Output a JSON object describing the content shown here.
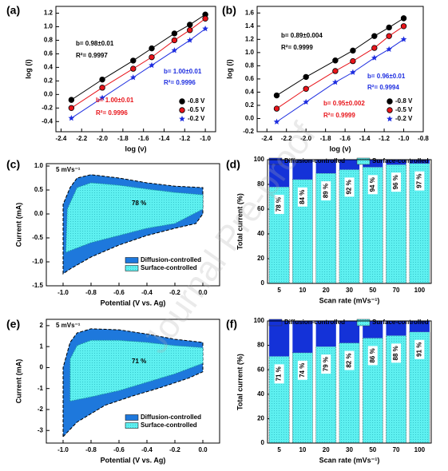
{
  "watermark": "Journal Pre-proof",
  "chart_data": [
    {
      "panel_label": "(a)",
      "type": "line",
      "xlabel": "log (ν)",
      "ylabel": "log (i)",
      "x": [
        -2.3,
        -2.0,
        -1.7,
        -1.52,
        -1.3,
        -1.15,
        -1.0
      ],
      "series": [
        {
          "name": "-0.8 V",
          "color": "#000000",
          "marker": "circle",
          "values": [
            -0.08,
            0.22,
            0.5,
            0.68,
            0.9,
            1.03,
            1.18
          ]
        },
        {
          "name": "-0.5 V",
          "color": "#e8141a",
          "marker": "circle",
          "values": [
            -0.2,
            0.1,
            0.38,
            0.55,
            0.8,
            0.95,
            1.12
          ]
        },
        {
          "name": "-0.2 V",
          "color": "#1d2de0",
          "marker": "star",
          "values": [
            -0.35,
            -0.05,
            0.25,
            0.43,
            0.65,
            0.8,
            0.97
          ]
        }
      ],
      "xlim": [
        -2.45,
        -0.9
      ],
      "xticks": [
        -2.4,
        -2.2,
        {
          "value": -2,
          "label": "-2.0"
        },
        -1.8,
        -1.6,
        -1.4,
        -1.2,
        {
          "value": -1,
          "label": "-1.0"
        }
      ],
      "ylim": [
        -0.55,
        1.3
      ],
      "yticks": [
        -0.4,
        -0.2,
        {
          "value": 0,
          "label": "0.0"
        },
        0.2,
        0.4,
        0.6,
        0.8,
        {
          "value": 1,
          "label": "1.0"
        },
        1.2
      ],
      "annotations": [
        {
          "text": "b= 0.98±0.01",
          "color": "#000000"
        },
        {
          "text": "R²= 0.9997",
          "color": "#000000"
        },
        {
          "text": "b= 1.00±0.01",
          "color": "#1d2de0"
        },
        {
          "text": "R²= 0.9996",
          "color": "#1d2de0"
        },
        {
          "text": "b= 1.00±0.01",
          "color": "#e8141a"
        },
        {
          "text": "R²= 0.9996",
          "color": "#e8141a"
        }
      ]
    },
    {
      "panel_label": "(b)",
      "type": "line",
      "xlabel": "log (ν)",
      "ylabel": "log (i)",
      "x": [
        -2.3,
        -2.0,
        -1.7,
        -1.52,
        -1.3,
        -1.15,
        -1.0
      ],
      "series": [
        {
          "name": "-0.8 V",
          "color": "#000000",
          "marker": "circle",
          "values": [
            0.35,
            0.63,
            0.88,
            1.03,
            1.25,
            1.38,
            1.52
          ]
        },
        {
          "name": "-0.5 V",
          "color": "#e8141a",
          "marker": "circle",
          "values": [
            0.15,
            0.45,
            0.72,
            0.87,
            1.07,
            1.25,
            1.4
          ]
        },
        {
          "name": "-0.2 V",
          "color": "#1d2de0",
          "marker": "star",
          "values": [
            -0.05,
            0.25,
            0.55,
            0.7,
            0.92,
            1.05,
            1.2
          ]
        }
      ],
      "xlim": [
        -2.5,
        -0.8
      ],
      "xticks": [
        -2.4,
        -2.2,
        {
          "value": -2,
          "label": "-2.0"
        },
        -1.8,
        -1.6,
        -1.4,
        -1.2,
        {
          "value": -1,
          "label": "-1.0"
        },
        -0.8
      ],
      "ylim": [
        -0.2,
        1.7
      ],
      "yticks": [
        -0.2,
        {
          "value": 0,
          "label": "0.0"
        },
        0.2,
        0.4,
        0.6,
        0.8,
        {
          "value": 1,
          "label": "1.0"
        },
        1.2,
        1.4,
        1.6
      ],
      "annotations": [
        {
          "text": "b= 0.89±0.004",
          "color": "#000000"
        },
        {
          "text": "R²= 0.9999",
          "color": "#000000"
        },
        {
          "text": "b= 0.96±0.01",
          "color": "#1d2de0"
        },
        {
          "text": "R²= 0.9994",
          "color": "#1d2de0"
        },
        {
          "text": "b= 0.95±0.002",
          "color": "#e8141a"
        },
        {
          "text": "R²= 0.9999",
          "color": "#e8141a"
        }
      ]
    },
    {
      "panel_label": "(c)",
      "type": "area",
      "xlabel": "Potential (V vs. Ag)",
      "ylabel": "Current (mA)",
      "series": [
        {
          "name": "Diffusion-controlled",
          "color": "#1e78dc",
          "x": [
            -1.0,
            -1.0,
            -0.95,
            -0.9,
            -0.8,
            -0.6,
            -0.4,
            -0.2,
            0,
            0,
            -0.05,
            -0.2,
            -0.4,
            -0.6,
            -0.8,
            -0.95,
            -1.0
          ],
          "values": [
            -1.25,
            0.2,
            0.55,
            0.75,
            0.82,
            0.75,
            0.65,
            0.58,
            0.55,
            0,
            -0.2,
            -0.3,
            -0.45,
            -0.65,
            -0.9,
            -1.15,
            -1.25
          ]
        },
        {
          "name": "Surface-controlled",
          "color": "#3fe6ee",
          "x": [
            -0.98,
            -0.97,
            -0.9,
            -0.8,
            -0.6,
            -0.4,
            -0.2,
            0,
            0,
            -0.2,
            -0.4,
            -0.6,
            -0.8,
            -0.98
          ],
          "values": [
            -0.8,
            0.1,
            0.55,
            0.65,
            0.6,
            0.52,
            0.45,
            0.4,
            0.1,
            -0.2,
            -0.3,
            -0.45,
            -0.6,
            -0.8
          ]
        }
      ],
      "xlim": [
        -1.12,
        0.12
      ],
      "xticks": [
        {
          "value": -1,
          "label": "-1.0"
        },
        -0.8,
        -0.6,
        -0.4,
        -0.2,
        {
          "value": 0,
          "label": "0.0"
        }
      ],
      "ylim": [
        -1.5,
        1.05
      ],
      "yticks": [
        -1.5,
        {
          "value": -1,
          "label": "-1.0"
        },
        -0.5,
        {
          "value": 0,
          "label": "0.0"
        },
        0.5,
        {
          "value": 1,
          "label": "1.0"
        }
      ],
      "annotations": [
        {
          "text": "5 mVs⁻¹",
          "color": "#000000"
        },
        {
          "text": "78 %",
          "color": "#000000"
        }
      ]
    },
    {
      "panel_label": "(d)",
      "type": "stacked-bar",
      "xlabel": "Scan rate (mVs⁻¹)",
      "ylabel": "Total current (%)",
      "categories": [
        "5",
        "10",
        "20",
        "30",
        "50",
        "70",
        "100"
      ],
      "series": [
        {
          "name": "Surface-controlled",
          "color": "#5ef0f0",
          "values": [
            78,
            84,
            89,
            92,
            94,
            96,
            97
          ],
          "value_labels": [
            "78 %",
            "84 %",
            "89 %",
            "92 %",
            "94 %",
            "96 %",
            "97 %"
          ]
        },
        {
          "name": "Diffusion-controlled",
          "color": "#1432d8",
          "values": [
            22,
            16,
            11,
            8,
            6,
            4,
            3
          ]
        }
      ],
      "ylim": [
        0,
        100
      ],
      "yticks": [
        0,
        20,
        40,
        60,
        80,
        100
      ]
    },
    {
      "panel_label": "(e)",
      "type": "area",
      "xlabel": "Potential (V vs. Ag)",
      "ylabel": "Current (mA)",
      "series": [
        {
          "name": "Diffusion-controlled",
          "color": "#1e78dc",
          "x": [
            -1.0,
            -1.0,
            -0.95,
            -0.9,
            -0.8,
            -0.6,
            -0.4,
            -0.2,
            0,
            0,
            -0.1,
            -0.3,
            -0.5,
            -0.7,
            -0.9,
            -1.0
          ],
          "values": [
            -3.3,
            0,
            1.2,
            1.65,
            1.85,
            1.8,
            1.6,
            1.35,
            1.2,
            -0.2,
            -0.5,
            -0.95,
            -1.35,
            -1.8,
            -2.6,
            -3.3
          ]
        },
        {
          "name": "Surface-controlled",
          "color": "#3fe6ee",
          "x": [
            -0.95,
            -0.95,
            -0.9,
            -0.8,
            -0.6,
            -0.4,
            -0.2,
            0,
            0,
            -0.2,
            -0.4,
            -0.6,
            -0.8,
            -0.95
          ],
          "values": [
            -1.6,
            0.4,
            1.05,
            1.3,
            1.3,
            1.2,
            1.05,
            0.95,
            0.2,
            -0.3,
            -0.7,
            -1.1,
            -1.4,
            -1.6
          ]
        }
      ],
      "xlim": [
        -1.12,
        0.12
      ],
      "xticks": [
        {
          "value": -1,
          "label": "-1.0"
        },
        -0.8,
        -0.6,
        -0.4,
        -0.2,
        {
          "value": 0,
          "label": "0.0"
        }
      ],
      "ylim": [
        -3.6,
        2.3
      ],
      "yticks": [
        -3,
        -2,
        -1,
        0,
        1,
        2
      ],
      "annotations": [
        {
          "text": "5 mVs⁻¹",
          "color": "#000000"
        },
        {
          "text": "71 %",
          "color": "#000000"
        }
      ]
    },
    {
      "panel_label": "(f)",
      "type": "stacked-bar",
      "xlabel": "Scan rate (mVs⁻¹)",
      "ylabel": "Total current (%)",
      "categories": [
        "5",
        "10",
        "20",
        "30",
        "50",
        "70",
        "100"
      ],
      "series": [
        {
          "name": "Surface-controlled",
          "color": "#5ef0f0",
          "values": [
            71,
            74,
            79,
            82,
            86,
            88,
            91
          ],
          "value_labels": [
            "71 %",
            "74 %",
            "79 %",
            "82 %",
            "86 %",
            "88 %",
            "91 %"
          ]
        },
        {
          "name": "Diffusion-controlled",
          "color": "#1432d8",
          "values": [
            29,
            26,
            21,
            18,
            14,
            12,
            9
          ]
        }
      ],
      "ylim": [
        0,
        100
      ],
      "yticks": [
        0,
        20,
        40,
        60,
        80,
        100
      ]
    }
  ]
}
